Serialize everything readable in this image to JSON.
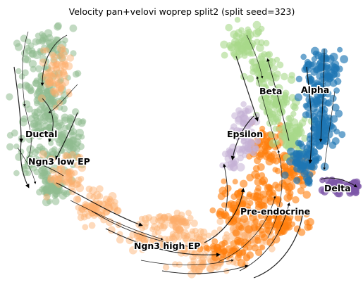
{
  "chart_data": {
    "type": "scatter",
    "subtype": "umap-velocity-stream",
    "title": "Velocity pan+velovi woprep split2 (split seed=323)",
    "xlabel": "",
    "ylabel": "",
    "axes_visible": false,
    "grid": false,
    "legend": "none (clusters labeled on-plot)",
    "clusters": [
      {
        "name": "Ductal",
        "color": "#8fbc8f"
      },
      {
        "name": "Ngn3 low EP",
        "color": "#8fbc8f"
      },
      {
        "name": "Ngn3 high EP",
        "color": "#fdae6b"
      },
      {
        "name": "Pre-endocrine",
        "color": "#ff7f0e"
      },
      {
        "name": "Beta",
        "color": "#a8d98a"
      },
      {
        "name": "Alpha",
        "color": "#1f77b4"
      },
      {
        "name": "Epsilon",
        "color": "#c5b0d5"
      },
      {
        "name": "Delta",
        "color": "#7e57a8"
      }
    ]
  }
}
